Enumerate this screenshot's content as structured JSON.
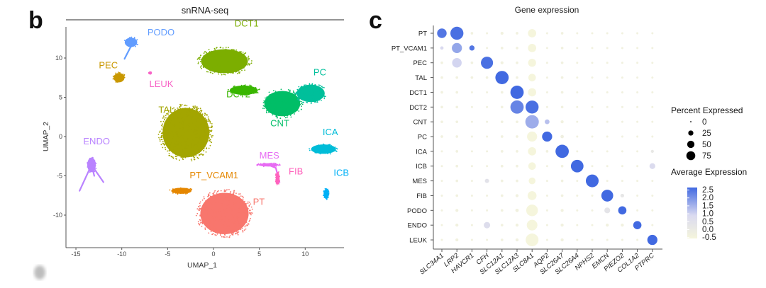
{
  "figure": {
    "panel_b_letter": "b",
    "panel_c_letter": "c"
  },
  "chart_data": [
    {
      "type": "scatter",
      "panel": "b",
      "title": "snRNA-seq",
      "xlabel": "UMAP_1",
      "ylabel": "UMAP_2",
      "xlim": [
        -16,
        14.5
      ],
      "ylim": [
        -13.5,
        14
      ],
      "xticks": [
        -15,
        -10,
        -5,
        0,
        5,
        10
      ],
      "yticks": [
        -10,
        -5,
        0,
        5,
        10
      ],
      "grid": false,
      "clusters": [
        {
          "name": "PODO",
          "color": "#619CFF",
          "label_pos": [
            -7.2,
            12.9
          ],
          "center": [
            -9.0,
            12.0
          ],
          "spread": [
            0.8,
            0.7
          ],
          "tail": [
            [
              -9.0,
              11.5
            ],
            [
              -9.7,
              9.9
            ]
          ]
        },
        {
          "name": "PEC",
          "color": "#C99800",
          "label_pos": [
            -12.5,
            8.7
          ],
          "center": [
            -10.3,
            7.5
          ],
          "spread": [
            0.7,
            0.7
          ],
          "tail": []
        },
        {
          "name": "LEUK",
          "color": "#F763C6",
          "label_pos": [
            -7.0,
            6.3
          ],
          "center": [
            -6.9,
            8.1
          ],
          "spread": [
            0.15,
            0.15
          ],
          "tail": []
        },
        {
          "name": "DCT1",
          "color": "#7CAE00",
          "label_pos": [
            2.3,
            14.0
          ],
          "center": [
            1.2,
            9.6
          ],
          "spread": [
            3.0,
            1.8
          ],
          "tail": []
        },
        {
          "name": "DCT2",
          "color": "#39B600",
          "label_pos": [
            1.4,
            5.0
          ],
          "center": [
            3.3,
            5.9
          ],
          "spread": [
            1.8,
            0.7
          ],
          "tail": []
        },
        {
          "name": "CNT",
          "color": "#00BE67",
          "label_pos": [
            6.2,
            1.3
          ],
          "center": [
            7.5,
            4.2
          ],
          "spread": [
            2.3,
            1.9
          ],
          "tail": []
        },
        {
          "name": "PC",
          "color": "#00BF9B",
          "label_pos": [
            10.9,
            7.8
          ],
          "center": [
            10.6,
            5.5
          ],
          "spread": [
            1.8,
            1.3
          ],
          "tail": []
        },
        {
          "name": "TAL",
          "color": "#A3A500",
          "label_pos": [
            -6.0,
            3.0
          ],
          "center": [
            -3.0,
            0.5
          ],
          "spread": [
            3.0,
            3.7
          ],
          "tail": []
        },
        {
          "name": "ICA",
          "color": "#00BCD8",
          "label_pos": [
            11.9,
            0.2
          ],
          "center": [
            12.0,
            -1.6
          ],
          "spread": [
            1.6,
            0.7
          ],
          "tail": []
        },
        {
          "name": "ICB",
          "color": "#00B0F6",
          "label_pos": [
            13.1,
            -5.0
          ],
          "center": [
            12.3,
            -7.3
          ],
          "spread": [
            0.35,
            0.7
          ],
          "tail": []
        },
        {
          "name": "MES",
          "color": "#E76BF3",
          "label_pos": [
            5.0,
            -2.8
          ],
          "center": [
            6.0,
            -3.6
          ],
          "spread": [
            1.3,
            0.25
          ],
          "tail": [
            [
              6.8,
              -4.0
            ],
            [
              7.2,
              -5.8
            ]
          ]
        },
        {
          "name": "FIB",
          "color": "#FF62BC",
          "label_pos": [
            8.2,
            -4.8
          ],
          "center": [
            7.0,
            -5.3
          ],
          "spread": [
            0.25,
            0.9
          ],
          "tail": []
        },
        {
          "name": "ENDO",
          "color": "#B983FF",
          "label_pos": [
            -14.2,
            -1.0
          ],
          "center": [
            -13.3,
            -3.6
          ],
          "spread": [
            0.55,
            1.1
          ],
          "tail": [
            [
              -13.0,
              -5.0
            ],
            [
              -12.0,
              -5.8
            ],
            [
              -14.6,
              -6.9
            ]
          ]
        },
        {
          "name": "PT_VCAM1",
          "color": "#E58700",
          "label_pos": [
            -2.6,
            -5.3
          ],
          "center": [
            -3.5,
            -6.9
          ],
          "spread": [
            1.3,
            0.45
          ],
          "tail": []
        },
        {
          "name": "PT",
          "color": "#F8766D",
          "label_pos": [
            4.3,
            -8.7
          ],
          "center": [
            1.2,
            -9.8
          ],
          "spread": [
            3.1,
            3.1
          ],
          "tail": []
        }
      ]
    },
    {
      "type": "scatter",
      "subtype": "dotplot",
      "panel": "c",
      "title": "Gene expression",
      "xlabel": "",
      "ylabel": "",
      "genes": [
        "SLC34A1",
        "LRP2",
        "HAVCR1",
        "CFH",
        "SLC12A1",
        "SLC12A3",
        "SLC8A1",
        "AQP2",
        "SLC26A7",
        "SLC26A4",
        "NPHS2",
        "EMCN",
        "PIEZO2",
        "COL1A2",
        "PTPRC"
      ],
      "cell_types": [
        "PT",
        "PT_VCAM1",
        "PEC",
        "TAL",
        "DCT1",
        "DCT2",
        "CNT",
        "PC",
        "ICA",
        "ICB",
        "MES",
        "FIB",
        "PODO",
        "ENDO",
        "LEUK"
      ],
      "pct_expressed": [
        [
          40,
          75,
          3,
          2,
          4,
          3,
          30,
          2,
          3,
          2,
          2,
          2,
          2,
          2,
          2
        ],
        [
          5,
          45,
          12,
          2,
          3,
          3,
          30,
          2,
          3,
          2,
          2,
          2,
          2,
          2,
          2
        ],
        [
          3,
          40,
          3,
          65,
          4,
          3,
          28,
          2,
          3,
          2,
          2,
          2,
          2,
          2,
          2
        ],
        [
          3,
          3,
          3,
          3,
          78,
          3,
          25,
          2,
          3,
          2,
          2,
          2,
          2,
          2,
          2
        ],
        [
          3,
          3,
          2,
          2,
          3,
          78,
          30,
          2,
          3,
          2,
          2,
          2,
          2,
          2,
          2
        ],
        [
          3,
          3,
          2,
          2,
          3,
          78,
          75,
          2,
          3,
          2,
          2,
          2,
          2,
          2,
          2
        ],
        [
          3,
          3,
          2,
          2,
          3,
          3,
          80,
          10,
          4,
          2,
          2,
          2,
          2,
          2,
          2
        ],
        [
          3,
          3,
          2,
          2,
          3,
          3,
          45,
          45,
          5,
          2,
          2,
          2,
          2,
          2,
          2
        ],
        [
          2,
          3,
          2,
          2,
          3,
          3,
          30,
          3,
          78,
          2,
          2,
          2,
          2,
          2,
          4
        ],
        [
          2,
          3,
          2,
          2,
          3,
          3,
          25,
          2,
          3,
          70,
          2,
          2,
          2,
          2,
          15
        ],
        [
          2,
          3,
          2,
          8,
          3,
          3,
          20,
          2,
          3,
          2,
          72,
          2,
          2,
          2,
          2
        ],
        [
          2,
          3,
          2,
          2,
          3,
          4,
          35,
          2,
          3,
          2,
          2,
          62,
          6,
          2,
          2
        ],
        [
          2,
          4,
          2,
          2,
          3,
          5,
          60,
          2,
          4,
          2,
          2,
          15,
          30,
          2,
          2
        ],
        [
          2,
          4,
          2,
          18,
          3,
          4,
          50,
          2,
          4,
          2,
          2,
          4,
          4,
          30,
          2
        ],
        [
          2,
          4,
          2,
          2,
          3,
          4,
          72,
          2,
          4,
          2,
          2,
          2,
          2,
          2,
          45
        ]
      ],
      "avg_expression": [
        [
          2.3,
          2.4,
          -0.3,
          -0.3,
          -0.3,
          -0.3,
          -0.5,
          -0.3,
          -0.3,
          -0.3,
          -0.3,
          -0.3,
          -0.3,
          -0.3,
          -0.3
        ],
        [
          0.8,
          1.6,
          2.3,
          -0.3,
          -0.3,
          -0.3,
          -0.5,
          -0.3,
          -0.3,
          -0.3,
          -0.3,
          -0.3,
          -0.3,
          -0.3,
          -0.3
        ],
        [
          -0.3,
          0.9,
          -0.3,
          2.4,
          -0.3,
          -0.3,
          -0.5,
          -0.3,
          -0.3,
          -0.3,
          -0.3,
          -0.3,
          -0.3,
          -0.3,
          -0.3
        ],
        [
          -0.3,
          -0.3,
          -0.3,
          -0.3,
          2.5,
          -0.3,
          -0.5,
          -0.3,
          -0.3,
          -0.3,
          -0.3,
          -0.3,
          -0.3,
          -0.3,
          -0.3
        ],
        [
          -0.3,
          -0.3,
          -0.3,
          -0.3,
          -0.3,
          2.5,
          -0.5,
          -0.3,
          -0.3,
          -0.3,
          -0.3,
          -0.3,
          -0.3,
          -0.3,
          -0.3
        ],
        [
          -0.3,
          -0.3,
          -0.3,
          -0.3,
          -0.3,
          2.1,
          2.4,
          -0.3,
          -0.3,
          -0.3,
          -0.3,
          -0.3,
          -0.3,
          -0.3,
          -0.3
        ],
        [
          -0.3,
          -0.3,
          -0.3,
          -0.3,
          -0.3,
          -0.3,
          1.5,
          1.2,
          -0.3,
          -0.3,
          -0.3,
          -0.3,
          -0.3,
          -0.3,
          -0.3
        ],
        [
          -0.3,
          -0.3,
          -0.3,
          -0.3,
          -0.3,
          -0.3,
          -0.5,
          2.5,
          -0.2,
          -0.3,
          -0.3,
          -0.3,
          -0.3,
          -0.3,
          -0.3
        ],
        [
          -0.3,
          -0.3,
          -0.3,
          -0.3,
          -0.3,
          -0.3,
          -0.5,
          -0.3,
          2.5,
          -0.3,
          -0.3,
          -0.3,
          -0.3,
          -0.3,
          0.1
        ],
        [
          -0.3,
          -0.3,
          -0.3,
          -0.3,
          -0.3,
          -0.3,
          -0.5,
          -0.3,
          -0.3,
          2.5,
          -0.3,
          -0.3,
          -0.3,
          -0.3,
          0.7
        ],
        [
          -0.3,
          -0.3,
          -0.3,
          0.4,
          -0.3,
          -0.3,
          -0.5,
          -0.3,
          -0.3,
          -0.3,
          2.5,
          -0.3,
          -0.3,
          -0.3,
          -0.3
        ],
        [
          -0.3,
          -0.3,
          -0.3,
          -0.3,
          -0.3,
          -0.3,
          -0.5,
          -0.3,
          -0.3,
          -0.3,
          -0.3,
          2.5,
          0.2,
          -0.3,
          -0.3
        ],
        [
          -0.3,
          -0.3,
          -0.3,
          -0.3,
          -0.3,
          -0.3,
          -0.5,
          -0.3,
          -0.3,
          -0.3,
          -0.3,
          0.3,
          2.5,
          -0.3,
          -0.3
        ],
        [
          -0.3,
          -0.3,
          -0.3,
          0.6,
          -0.3,
          -0.3,
          -0.5,
          -0.3,
          -0.3,
          -0.3,
          -0.3,
          -0.3,
          -0.3,
          2.5,
          -0.3
        ],
        [
          -0.3,
          -0.3,
          -0.3,
          -0.3,
          -0.3,
          -0.3,
          -0.5,
          -0.3,
          -0.3,
          -0.3,
          -0.3,
          -0.3,
          -0.3,
          -0.3,
          2.5
        ]
      ],
      "legend": {
        "placement": "right",
        "size_title": "Percent Expressed",
        "size_values": [
          0,
          25,
          50,
          75
        ],
        "color_title": "Average Expression",
        "color_ticks": [
          "2.5",
          "2.0",
          "1.5",
          "1.0",
          "0.5",
          "0.0",
          "-0.5"
        ],
        "color_range": [
          -0.5,
          2.5
        ],
        "color_low": "#F5F5DC",
        "color_mid": "#D8D8F0",
        "color_high": "#4169E1"
      }
    }
  ]
}
